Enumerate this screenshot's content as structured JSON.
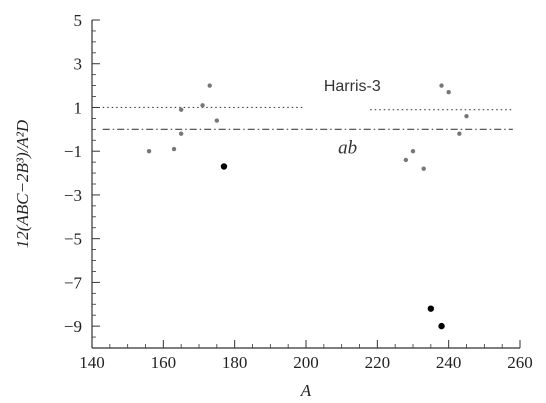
{
  "chart_data": {
    "type": "scatter",
    "title": "",
    "xlabel": "A",
    "ylabel": "12(ABC−2B³)/A²D",
    "xlim": [
      140,
      260
    ],
    "ylim": [
      -10,
      5
    ],
    "x_ticks": [
      140,
      160,
      180,
      200,
      220,
      240,
      260
    ],
    "y_ticks": [
      -9,
      -7,
      -5,
      -3,
      -1,
      1,
      3,
      5
    ],
    "x_tick_labels": [
      "140",
      "160",
      "180",
      "200",
      "220",
      "240",
      "260"
    ],
    "y_tick_labels": [
      "−9",
      "−7",
      "−5",
      "−3",
      "−1",
      "1",
      "3",
      "5"
    ],
    "grid": false,
    "series": [
      {
        "marker": "small-gray",
        "color": "#777777",
        "points": [
          {
            "x": 156,
            "y": -1.0
          },
          {
            "x": 163,
            "y": -0.9
          },
          {
            "x": 165,
            "y": 0.9
          },
          {
            "x": 165,
            "y": -0.2
          },
          {
            "x": 171,
            "y": 1.1
          },
          {
            "x": 173,
            "y": 2.0
          },
          {
            "x": 175,
            "y": 0.4
          },
          {
            "x": 228,
            "y": -1.4
          },
          {
            "x": 230,
            "y": -1.0
          },
          {
            "x": 233,
            "y": -1.8
          },
          {
            "x": 238,
            "y": 2.0
          },
          {
            "x": 240,
            "y": 1.7
          },
          {
            "x": 243,
            "y": -0.2
          },
          {
            "x": 245,
            "y": 0.6
          }
        ]
      },
      {
        "marker": "large-black",
        "color": "#000000",
        "points": [
          {
            "x": 177,
            "y": -1.7
          },
          {
            "x": 235,
            "y": -8.2
          },
          {
            "x": 238,
            "y": -9.0
          }
        ]
      }
    ],
    "reference_lines": [
      {
        "label": "Harris-3",
        "style": "dotted",
        "segments": [
          {
            "x1": 143,
            "x2": 199,
            "y": 1.0
          },
          {
            "x1": 218,
            "x2": 258,
            "y": 0.9
          }
        ]
      },
      {
        "label": "ab",
        "style": "dash-dot",
        "segments": [
          {
            "x1": 143,
            "x2": 258,
            "y": 0.0
          }
        ]
      }
    ]
  }
}
